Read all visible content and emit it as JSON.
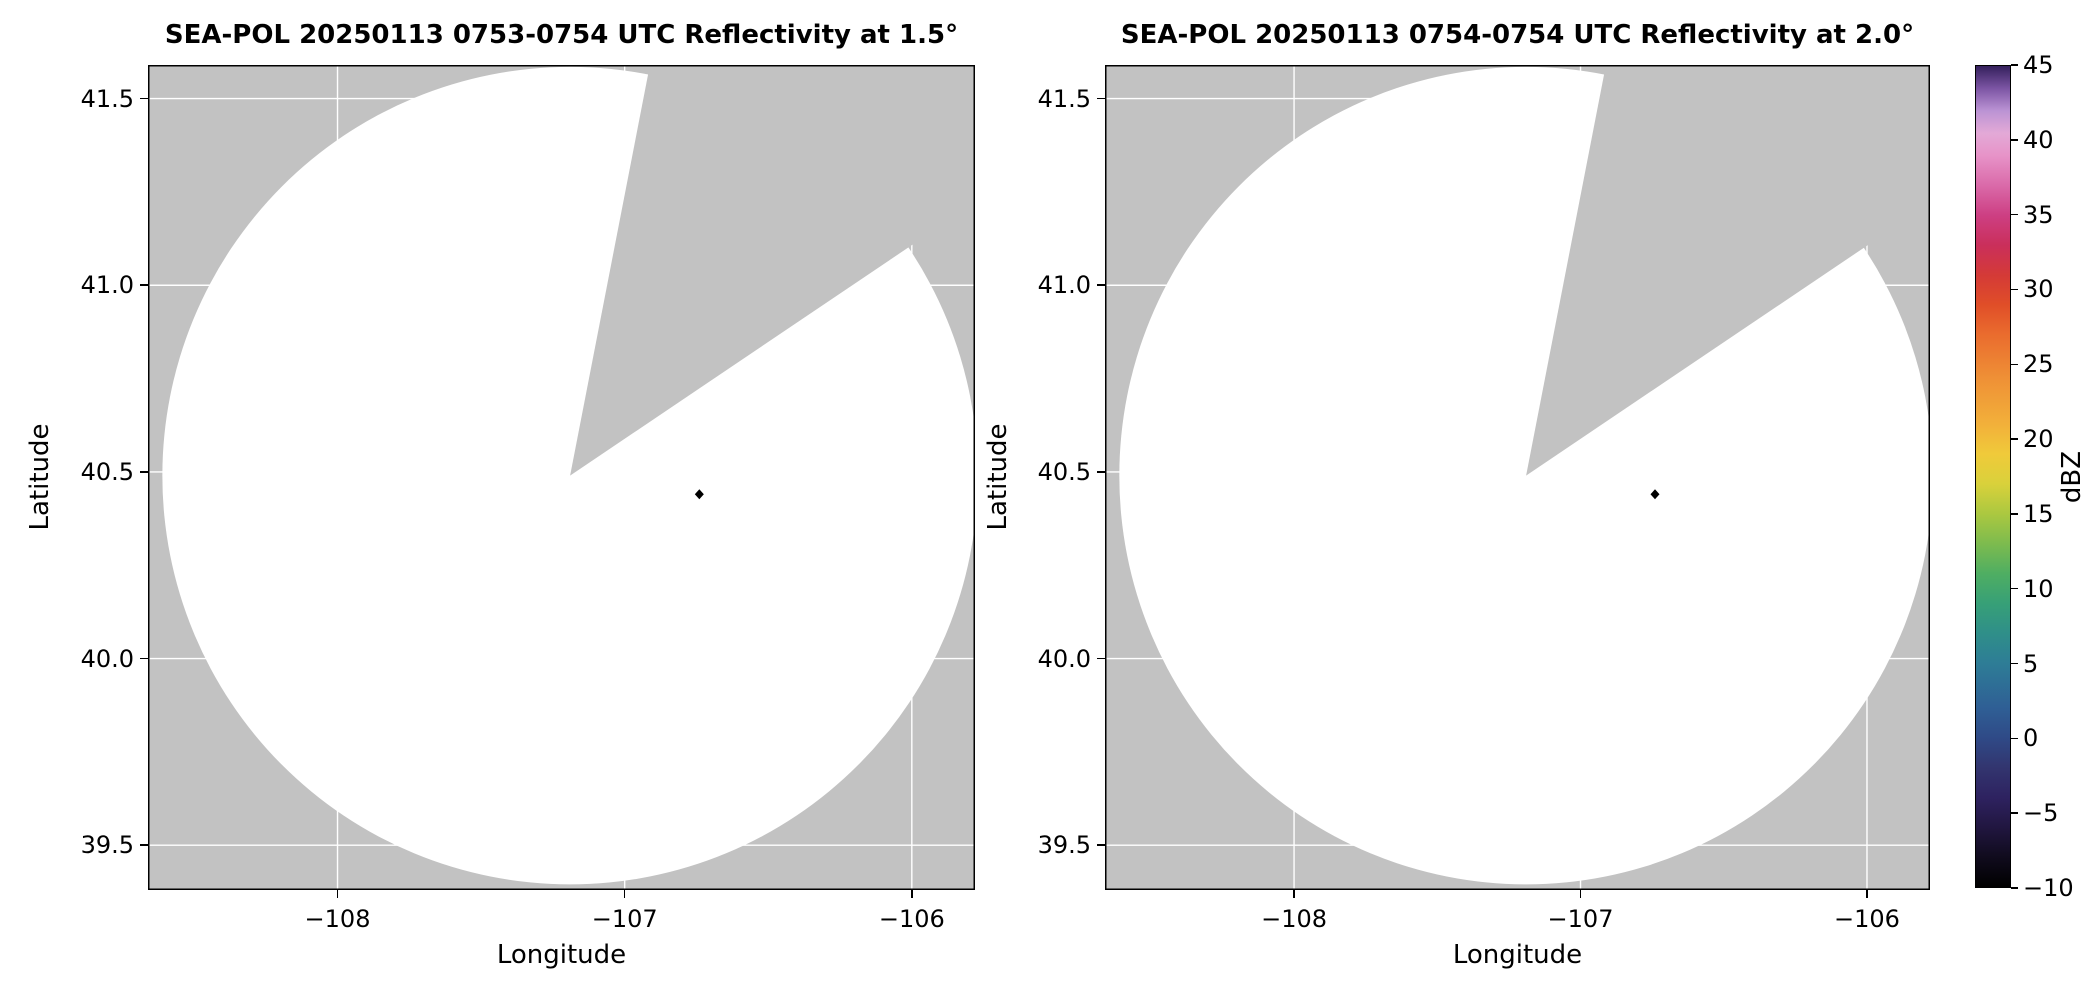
{
  "chart_data": {
    "type": "heatmap",
    "description": "Dual-panel SEA-POL radar PPI reflectivity figure with shared dBZ colorbar. The circular scanned area is blank (no echoes above colormap floor), with an unscanned gray wedge to the north-northeast and a small black diamond site marker near the scan center.",
    "style": {
      "panel_bg": "#c2c2c2",
      "grid_color": "#ffffff",
      "scan_fill": "#ffffff",
      "marker_color": "#000000",
      "border_color": "#000000"
    },
    "panels": [
      {
        "title": "SEA-POL 20250113 0753-0754 UTC Reflectivity at 1.5°",
        "xlabel": "Longitude",
        "ylabel": "Latitude",
        "xlim": [
          -108.66,
          -105.78
        ],
        "ylim": [
          39.38,
          41.59
        ],
        "xticks": [
          {
            "v": -108,
            "label": "−108"
          },
          {
            "v": -107,
            "label": "−107"
          },
          {
            "v": -106,
            "label": "−106"
          }
        ],
        "yticks": [
          {
            "v": 39.5,
            "label": "39.5"
          },
          {
            "v": 40.0,
            "label": "40.0"
          },
          {
            "v": 40.5,
            "label": "40.5"
          },
          {
            "v": 41.0,
            "label": "41.0"
          },
          {
            "v": 41.5,
            "label": "41.5"
          }
        ],
        "scan": {
          "center_lon": -107.19,
          "center_lat": 40.49,
          "rx_deg": 1.42,
          "ry_deg": 1.095,
          "gap_start_az_deg": 11,
          "gap_end_az_deg": 56
        },
        "marker": {
          "lon": -106.74,
          "lat": 40.44
        }
      },
      {
        "title": "SEA-POL 20250113 0754-0754 UTC Reflectivity at 2.0°",
        "xlabel": "Longitude",
        "ylabel": "Latitude",
        "xlim": [
          -108.66,
          -105.78
        ],
        "ylim": [
          39.38,
          41.59
        ],
        "xticks": [
          {
            "v": -108,
            "label": "−108"
          },
          {
            "v": -107,
            "label": "−107"
          },
          {
            "v": -106,
            "label": "−106"
          }
        ],
        "yticks": [
          {
            "v": 39.5,
            "label": "39.5"
          },
          {
            "v": 40.0,
            "label": "40.0"
          },
          {
            "v": 40.5,
            "label": "40.5"
          },
          {
            "v": 41.0,
            "label": "41.0"
          },
          {
            "v": 41.5,
            "label": "41.5"
          }
        ],
        "scan": {
          "center_lon": -107.19,
          "center_lat": 40.49,
          "rx_deg": 1.42,
          "ry_deg": 1.095,
          "gap_start_az_deg": 11,
          "gap_end_az_deg": 56
        },
        "marker": {
          "lon": -106.74,
          "lat": 40.44
        }
      }
    ],
    "colorbar": {
      "label": "dBZ",
      "min": -10,
      "max": 45,
      "ticks": [
        {
          "value": 45,
          "label": "45"
        },
        {
          "value": 40,
          "label": "40"
        },
        {
          "value": 35,
          "label": "35"
        },
        {
          "value": 30,
          "label": "30"
        },
        {
          "value": 25,
          "label": "25"
        },
        {
          "value": 20,
          "label": "20"
        },
        {
          "value": 15,
          "label": "15"
        },
        {
          "value": 10,
          "label": "10"
        },
        {
          "value": 5,
          "label": "5"
        },
        {
          "value": 0,
          "label": "0"
        },
        {
          "value": -5,
          "label": "−5"
        },
        {
          "value": -10,
          "label": "−10"
        }
      ],
      "stops": [
        {
          "value": -10,
          "color": "#000000"
        },
        {
          "value": -8,
          "color": "#100b1d"
        },
        {
          "value": -6,
          "color": "#211640"
        },
        {
          "value": -4,
          "color": "#2e2260"
        },
        {
          "value": -2,
          "color": "#32356f"
        },
        {
          "value": 0,
          "color": "#2f4a87"
        },
        {
          "value": 2,
          "color": "#2f5f95"
        },
        {
          "value": 5,
          "color": "#2e7d96"
        },
        {
          "value": 7,
          "color": "#2f8f89"
        },
        {
          "value": 9,
          "color": "#37a077"
        },
        {
          "value": 11,
          "color": "#4fae62"
        },
        {
          "value": 13,
          "color": "#7dbb4e"
        },
        {
          "value": 15,
          "color": "#abc840"
        },
        {
          "value": 17,
          "color": "#d9d13b"
        },
        {
          "value": 19,
          "color": "#f0ca3a"
        },
        {
          "value": 21,
          "color": "#f2b03a"
        },
        {
          "value": 24,
          "color": "#ef9136"
        },
        {
          "value": 27,
          "color": "#ea6c2e"
        },
        {
          "value": 29,
          "color": "#e04e28"
        },
        {
          "value": 31,
          "color": "#d43a37"
        },
        {
          "value": 33,
          "color": "#ca2f5b"
        },
        {
          "value": 35,
          "color": "#cd3f83"
        },
        {
          "value": 37,
          "color": "#da6aa9"
        },
        {
          "value": 39,
          "color": "#e793c8"
        },
        {
          "value": 40.5,
          "color": "#e3a9d7"
        },
        {
          "value": 42,
          "color": "#bb93d4"
        },
        {
          "value": 43.5,
          "color": "#7c55a4"
        },
        {
          "value": 45,
          "color": "#34205c"
        }
      ]
    }
  }
}
